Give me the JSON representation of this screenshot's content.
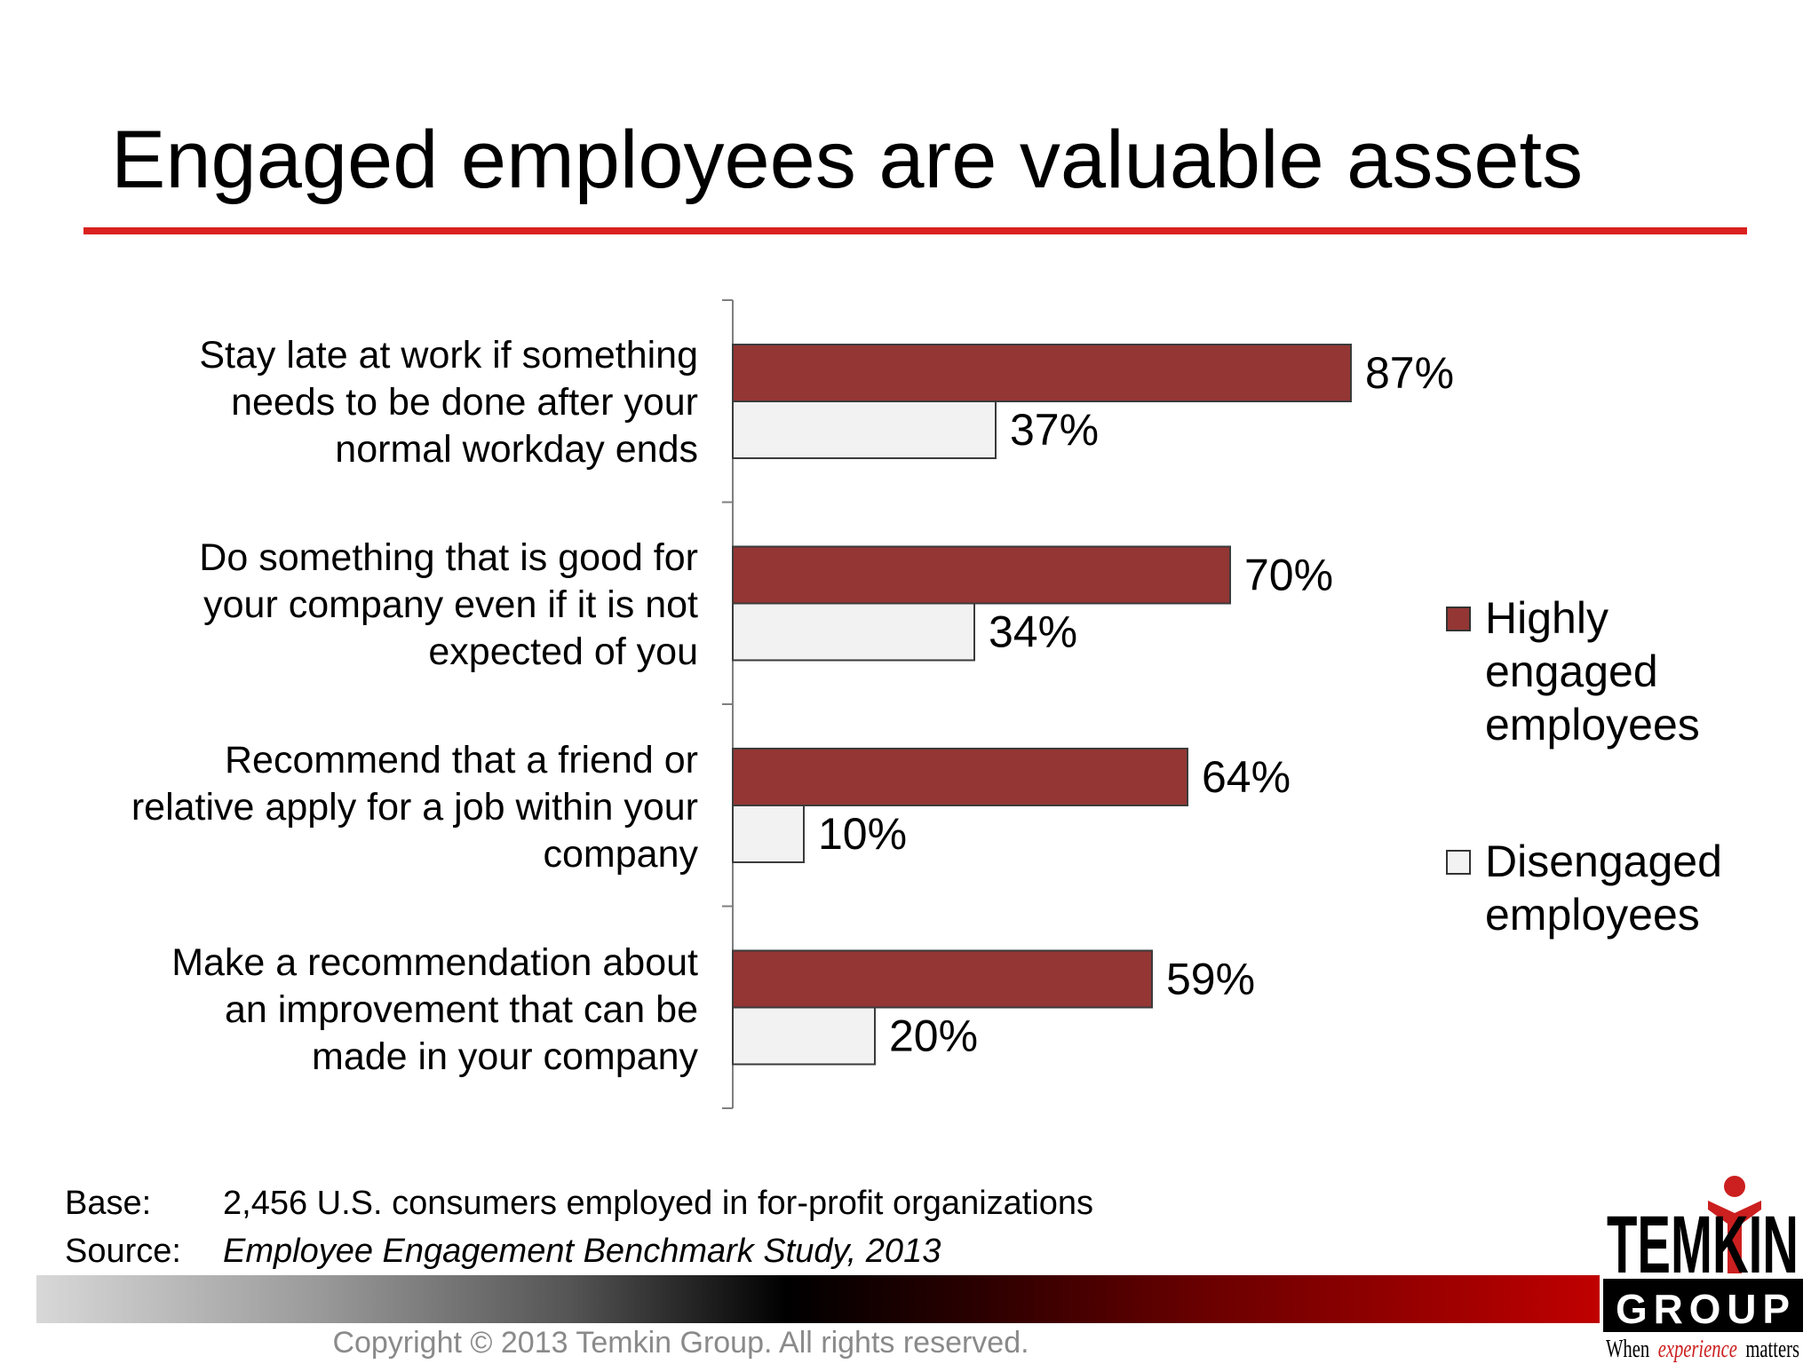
{
  "title": "Engaged employees are valuable assets",
  "chart_data": {
    "type": "bar",
    "orientation": "horizontal",
    "categories": [
      "Stay late at work if something needs to be done after your normal workday ends",
      "Do something that is good for your company even if it is not expected of you",
      "Recommend that a friend or relative apply for a job within your company",
      "Make a recommendation about an improvement that can be made in your company"
    ],
    "category_lines": [
      [
        "Stay late at work if something",
        "needs to be done after your",
        "normal workday ends"
      ],
      [
        "Do something that is good for",
        "your company even if it is not",
        "expected of you"
      ],
      [
        "Recommend that a friend or",
        "relative apply for a job within your",
        "company"
      ],
      [
        "Make a recommendation about",
        "an improvement that can be",
        "made in your company"
      ]
    ],
    "series": [
      {
        "name": "Highly engaged employees",
        "color": "#943634",
        "values": [
          87,
          70,
          64,
          59
        ],
        "labels": [
          "87%",
          "70%",
          "64%",
          "59%"
        ]
      },
      {
        "name": "Disengaged employees",
        "color": "#f2f2f2",
        "values": [
          37,
          34,
          10,
          20
        ],
        "labels": [
          "37%",
          "34%",
          "10%",
          "20%"
        ]
      }
    ],
    "xlim": [
      0,
      100
    ],
    "unit": "%",
    "legend_position": "right",
    "grid": false
  },
  "legend": {
    "highly_engaged_lines": [
      "Highly",
      "engaged",
      "employees"
    ],
    "disengaged_lines": [
      "Disengaged",
      "employees"
    ]
  },
  "footnote": {
    "base_label": "Base:",
    "base_value": "2,456 U.S. consumers employed in for-profit organizations",
    "source_label": "Source:",
    "source_value": "Employee Engagement Benchmark Study, 2013"
  },
  "copyright": "Copyright © 2013 Temkin Group. All rights reserved.",
  "logo": {
    "line1": "TEMKIN",
    "line2": "GROUP",
    "tagline_when": "When",
    "tagline_experience": "experience",
    "tagline_matters": "matters"
  }
}
